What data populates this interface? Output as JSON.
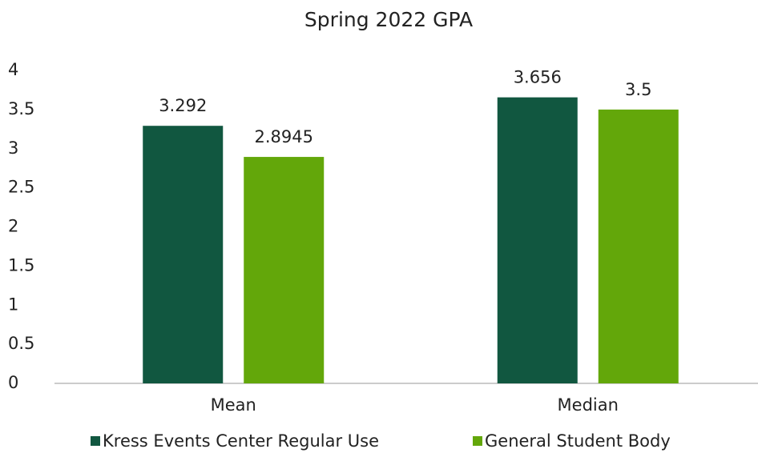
{
  "chart_data": {
    "type": "bar",
    "title": "Spring 2022 GPA",
    "categories": [
      "Mean",
      "Median"
    ],
    "series": [
      {
        "name": "Kress Events Center Regular Use",
        "color": "#115740",
        "values": [
          3.292,
          3.656
        ]
      },
      {
        "name": "General Student Body",
        "color": "#63a70a",
        "values": [
          2.8945,
          3.5
        ]
      }
    ],
    "ylim": [
      0,
      4
    ],
    "yticks": [
      0,
      0.5,
      1,
      1.5,
      2,
      2.5,
      3,
      3.5,
      4
    ],
    "grid": false,
    "legend": "bottom"
  }
}
